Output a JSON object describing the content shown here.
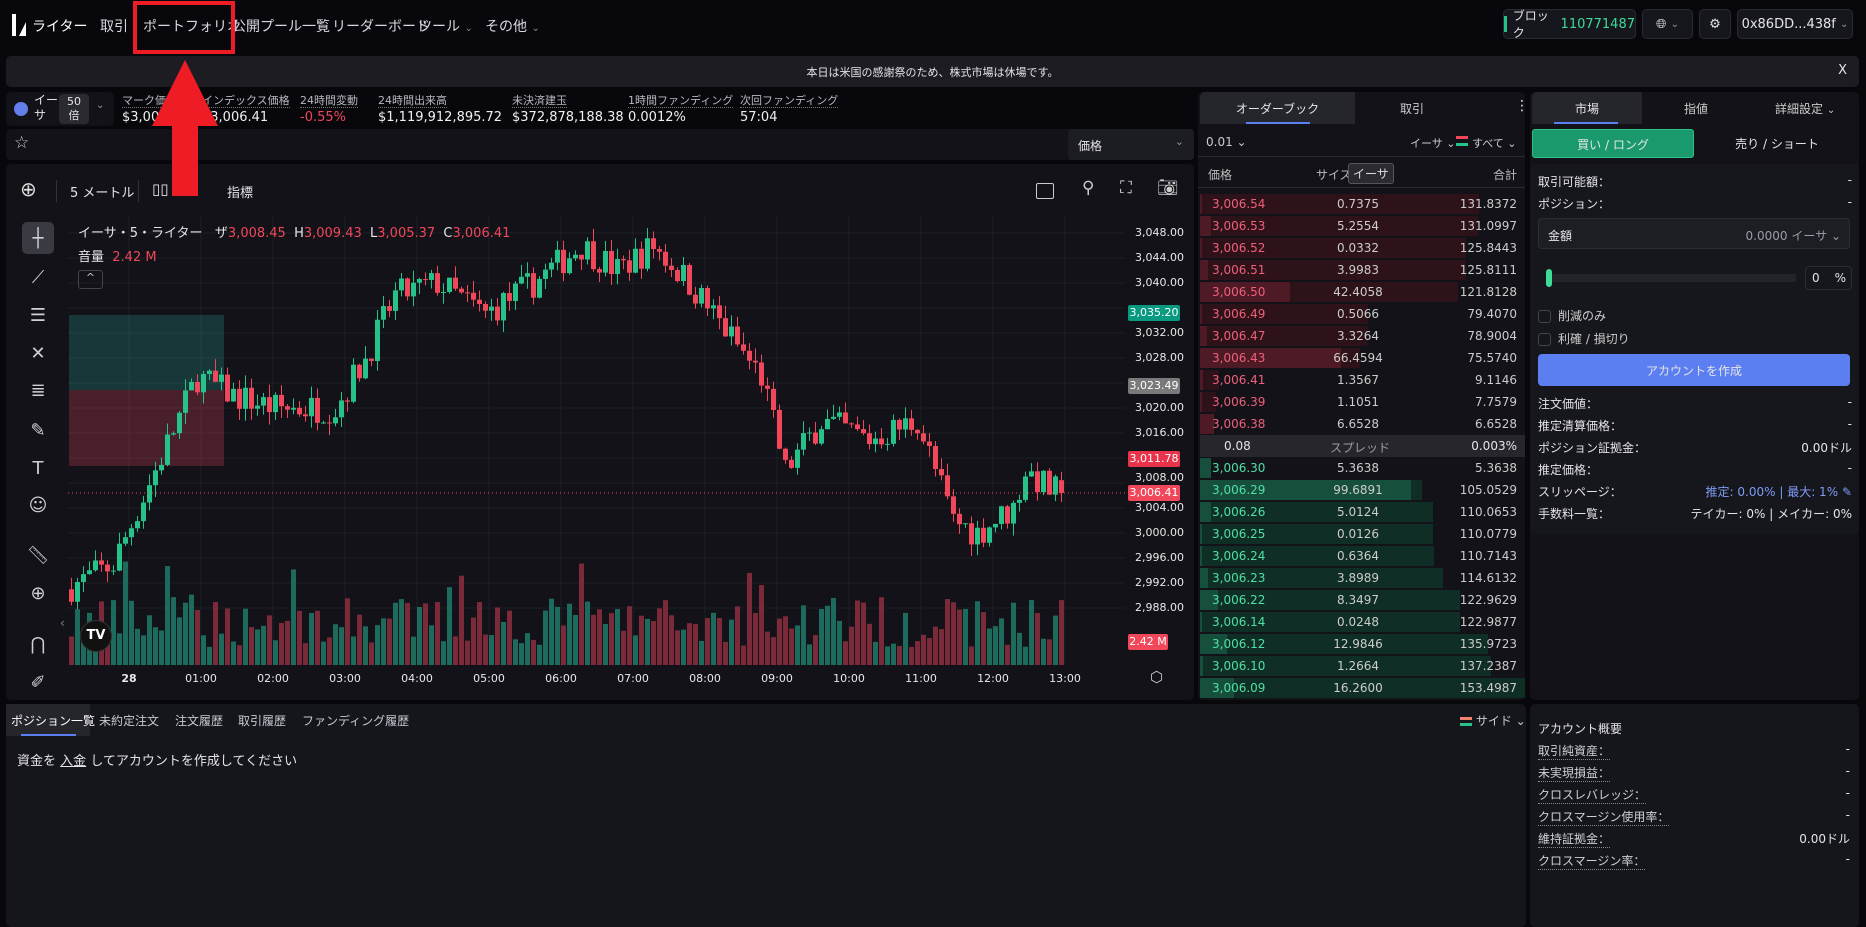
{
  "nav": {
    "logo": "ライター",
    "items": [
      "取引",
      "ポートフォリオ",
      "公開プール一覧",
      "リーダーボード",
      "ツール",
      "その他"
    ],
    "block_label": "ブロック",
    "block_number": "110771487",
    "address": "0x86DD...438f"
  },
  "banner": {
    "text": "本日は米国の感謝祭のため、株式市場は休場です。",
    "close": "X"
  },
  "ticker": {
    "symbol_line1": "イー",
    "symbol_line2": "サ",
    "leverage_line1": "50",
    "leverage_line2": "倍",
    "stats": [
      {
        "label": "マーク価格",
        "value": "$3,006.41"
      },
      {
        "label": "インデックス価格",
        "value": "$3,006.41"
      },
      {
        "label": "24時間変動",
        "value": "-0.55%"
      },
      {
        "label": "24時間出来高",
        "value": "$1,119,912,895.72"
      },
      {
        "label": "未決済建玉",
        "value": "$372,878,188.38"
      },
      {
        "label": "1時間ファンディング",
        "value": "0.0012%"
      },
      {
        "label": "次回ファンディング",
        "value": "57:04"
      }
    ],
    "price_select": "価格"
  },
  "chart_toolbar": {
    "interval": "5 メートル",
    "indicators": "指標"
  },
  "chart": {
    "title": "イーサ・5・ライター",
    "o_label": "ザ",
    "o": "3,008.45",
    "h_label": "H",
    "h": "3,009.43",
    "l_label": "L",
    "l": "3,005.37",
    "c_label": "C",
    "c": "3,006.41",
    "volume_label": "音量",
    "volume": "2.42 M",
    "price_labels": [
      "3,048.00",
      "3,044.00",
      "3,040.00",
      "3,032.00",
      "3,028.00",
      "3,020.00",
      "3,016.00",
      "3,008.00",
      "3,004.00",
      "3,000.00",
      "2,996.00",
      "2,992.00",
      "2,988.00"
    ],
    "price_ticks": [
      3048,
      3044,
      3040,
      3032,
      3028,
      3020,
      3016,
      3008,
      3004,
      3000,
      2996,
      2992,
      2988
    ],
    "tags": [
      {
        "text": "3,035.20",
        "price": 3035.2,
        "color": "#089981"
      },
      {
        "text": "3,023.49",
        "price": 3023.49,
        "color": "#7a7a7a"
      },
      {
        "text": "3,011.78",
        "price": 3011.78,
        "color": "#e8334a"
      },
      {
        "text": "3,006.41",
        "price": 3006.41,
        "color": "#f0475a"
      }
    ],
    "volume_tag": "2.42 M",
    "time_labels": [
      "28",
      "01:00",
      "02:00",
      "03:00",
      "04:00",
      "05:00",
      "06:00",
      "07:00",
      "08:00",
      "09:00",
      "10:00",
      "11:00",
      "12:00",
      "13:00"
    ]
  },
  "chart_data": {
    "type": "candlestick",
    "interval": "5m",
    "ylim": [
      2984,
      3050
    ],
    "path_waypoints": [
      [
        0,
        2991
      ],
      [
        8,
        2995
      ],
      [
        15,
        3010
      ],
      [
        22,
        3025
      ],
      [
        28,
        3022
      ],
      [
        35,
        3020
      ],
      [
        45,
        3020
      ],
      [
        50,
        3028
      ],
      [
        55,
        3038
      ],
      [
        62,
        3040
      ],
      [
        70,
        3035
      ],
      [
        78,
        3040
      ],
      [
        86,
        3046
      ],
      [
        92,
        3042
      ],
      [
        98,
        3046
      ],
      [
        104,
        3040
      ],
      [
        112,
        3030
      ],
      [
        116,
        3025
      ],
      [
        120,
        3010
      ],
      [
        126,
        3018
      ],
      [
        134,
        3015
      ],
      [
        142,
        3018
      ],
      [
        148,
        3002
      ],
      [
        152,
        3000
      ],
      [
        158,
        3004
      ],
      [
        160,
        3010
      ],
      [
        164,
        3007
      ],
      [
        166,
        3006.41
      ]
    ],
    "last": {
      "open": 3008.45,
      "high": 3009.43,
      "low": 3005.37,
      "close": 3006.41,
      "volume": "2.42M"
    }
  },
  "orderbook": {
    "tabs": [
      "オーダーブック",
      "取引"
    ],
    "tick": "0.01",
    "asset": "イーサ",
    "filter": "すべて",
    "headers": [
      "価格",
      "サイズ",
      "イーサ",
      "合計"
    ],
    "asks": [
      [
        "3,006.54",
        "0.7375",
        "131.8372"
      ],
      [
        "3,006.53",
        "5.2554",
        "131.0997"
      ],
      [
        "3,006.52",
        "0.0332",
        "125.8443"
      ],
      [
        "3,006.51",
        "3.9983",
        "125.8111"
      ],
      [
        "3,006.50",
        "42.4058",
        "121.8128"
      ],
      [
        "3,006.49",
        "0.5066",
        "79.4070"
      ],
      [
        "3,006.47",
        "3.3264",
        "78.9004"
      ],
      [
        "3,006.43",
        "66.4594",
        "75.5740"
      ],
      [
        "3,006.41",
        "1.3567",
        "9.1146"
      ],
      [
        "3,006.39",
        "1.1051",
        "7.7579"
      ],
      [
        "3,006.38",
        "6.6528",
        "6.6528"
      ]
    ],
    "spread": {
      "value": "0.08",
      "label": "スプレッド",
      "pct": "0.003%"
    },
    "bids": [
      [
        "3,006.30",
        "5.3638",
        "5.3638"
      ],
      [
        "3,006.29",
        "99.6891",
        "105.0529"
      ],
      [
        "3,006.26",
        "5.0124",
        "110.0653"
      ],
      [
        "3,006.25",
        "0.0126",
        "110.0779"
      ],
      [
        "3,006.24",
        "0.6364",
        "110.7143"
      ],
      [
        "3,006.23",
        "3.8989",
        "114.6132"
      ],
      [
        "3,006.22",
        "8.3497",
        "122.9629"
      ],
      [
        "3,006.14",
        "0.0248",
        "122.9877"
      ],
      [
        "3,006.12",
        "12.9846",
        "135.9723"
      ],
      [
        "3,006.10",
        "1.2664",
        "137.2387"
      ],
      [
        "3,006.09",
        "16.2600",
        "153.4987"
      ]
    ]
  },
  "order": {
    "tabs": [
      "市場",
      "指値",
      "詳細設定"
    ],
    "buy": "買い / ロング",
    "sell": "売り / ショート",
    "available_label": "取引可能額：",
    "available": "-",
    "position_label": "ポジション：",
    "position": "-",
    "amount_label": "金額",
    "amount_value": "0.0000 イーサ",
    "slider_percent": 0,
    "percent_value": "0",
    "percent_unit": "%",
    "reduce_only": "削減のみ",
    "tpsl": "利確 / 損切り",
    "create_account": "アカウントを作成",
    "rows": [
      {
        "k": "注文価値：",
        "v": "-"
      },
      {
        "k": "推定清算価格：",
        "v": "-"
      },
      {
        "k": "ポジション証拠金：",
        "v": "0.00ドル"
      },
      {
        "k": "推定価格：",
        "v": "-"
      }
    ],
    "slippage_label": "スリッページ：",
    "slippage_est": "推定: 0.00%",
    "slippage_max": "最大: 1%",
    "fees_label": "手数料一覧：",
    "fees_taker": "テイカー: 0%",
    "fees_maker": "メイカー: 0%"
  },
  "bottom": {
    "tabs": [
      "ポジション一覧",
      "未約定注文",
      "注文履歴",
      "取引履歴",
      "ファンディング履歴"
    ],
    "side_filter": "サイド",
    "msg_pre": "資金を",
    "msg_link": "入金",
    "msg_post": "してアカウントを作成してください"
  },
  "account": {
    "title": "アカウント概要",
    "rows": [
      {
        "k": "取引純資産：",
        "v": "-"
      },
      {
        "k": "未実現損益：",
        "v": "-"
      },
      {
        "k": "クロスレバレッジ：",
        "v": "-"
      },
      {
        "k": "クロスマージン使用率：",
        "v": "-"
      },
      {
        "k": "維持証拠金：",
        "v": "0.00ドル"
      },
      {
        "k": "クロスマージン率：",
        "v": "-"
      }
    ]
  },
  "colors": {
    "up": "#26c28a",
    "down": "#f0475a",
    "accent": "#5b7ff0",
    "buy": "#1a9a6c"
  }
}
